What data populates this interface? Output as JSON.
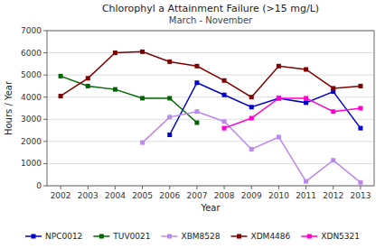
{
  "chart_data": {
    "type": "line",
    "title": "Chlorophyl a Attainment Failure (>15 mg/L)",
    "subtitle": "March - November",
    "x_label": "Year",
    "y_label": "Hours / Year",
    "x": [
      2002,
      2003,
      2004,
      2005,
      2006,
      2007,
      2008,
      2009,
      2010,
      2011,
      2012,
      2013
    ],
    "series": [
      {
        "name": "NPC0012",
        "color": "#0000CC",
        "values": [
          null,
          null,
          null,
          null,
          2300,
          4650,
          4100,
          3550,
          3950,
          3750,
          4250,
          2600
        ]
      },
      {
        "name": "TUV0021",
        "color": "#006600",
        "values": [
          4950,
          4500,
          4350,
          3950,
          3950,
          2850,
          null,
          null,
          null,
          null,
          null,
          null
        ]
      },
      {
        "name": "XBM8528",
        "color": "#BB88EE",
        "values": [
          null,
          null,
          null,
          1950,
          3100,
          3350,
          2900,
          1650,
          2200,
          200,
          1150,
          150
        ]
      },
      {
        "name": "XDM4486",
        "color": "#800000",
        "values": [
          4050,
          4850,
          6000,
          6050,
          5600,
          5400,
          4750,
          4000,
          5400,
          5250,
          4400,
          4500
        ]
      },
      {
        "name": "XDN5321",
        "color": "#FF00CC",
        "values": [
          null,
          null,
          null,
          null,
          null,
          null,
          2600,
          3050,
          3950,
          3950,
          3350,
          3500
        ]
      }
    ],
    "xlim": [
      2001.5,
      2013.5
    ],
    "xticks": [
      2002,
      2003,
      2004,
      2005,
      2006,
      2007,
      2008,
      2009,
      2010,
      2011,
      2012,
      2013
    ],
    "ylim": [
      0,
      7000
    ],
    "yticks": [
      0,
      1000,
      2000,
      3000,
      4000,
      5000,
      6000,
      7000
    ],
    "grid": "y",
    "legend": "bottom",
    "marker": "square",
    "line_style": "solid"
  }
}
